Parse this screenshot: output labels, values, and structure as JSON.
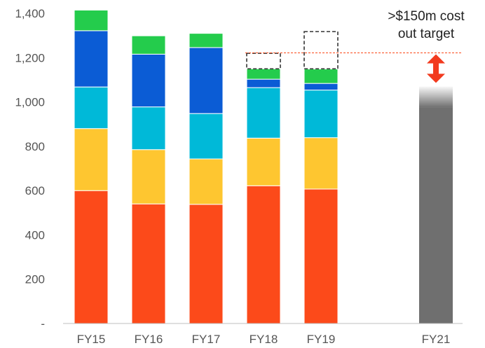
{
  "chart_data": {
    "type": "bar",
    "stacked": true,
    "categories": [
      "FY15",
      "FY16",
      "FY17",
      "FY18",
      "FY19",
      "FY21"
    ],
    "ylim": [
      0,
      1400
    ],
    "y_ticks": [
      0,
      200,
      400,
      600,
      800,
      1000,
      1200,
      1400
    ],
    "y_tick_labels": [
      "-",
      "200",
      "400",
      "600",
      "800",
      "1,000",
      "1,200",
      "1,400"
    ],
    "grid": false,
    "series": [
      {
        "color": "#fc4a1a",
        "values": [
          600,
          540,
          538,
          622,
          607,
          null
        ]
      },
      {
        "color": "#fec630",
        "values": [
          280,
          245,
          205,
          215,
          232,
          null
        ]
      },
      {
        "color": "#00b9d8",
        "values": [
          188,
          193,
          205,
          228,
          215,
          null
        ]
      },
      {
        "color": "#0b5cd5",
        "values": [
          254,
          238,
          298,
          38,
          30,
          null
        ]
      },
      {
        "color": "#24cc4c",
        "values": [
          93,
          83,
          64,
          47,
          65,
          null
        ]
      }
    ],
    "gap_boxes": [
      {
        "category": "FY18",
        "from": 1150,
        "to": 1220
      },
      {
        "category": "FY19",
        "from": 1150,
        "to": 1318
      }
    ],
    "target_bar": {
      "category": "FY21",
      "value": 1070,
      "color": "#6f6f6f"
    },
    "reference_line": {
      "value": 1222,
      "color": "#fc4a1a",
      "style": "dashed"
    },
    "annotation": {
      "lines": [
        ">$150m cost",
        "out target"
      ],
      "arrow_color": "#f23a1e",
      "arrow_range": [
        1080,
        1222
      ]
    }
  }
}
